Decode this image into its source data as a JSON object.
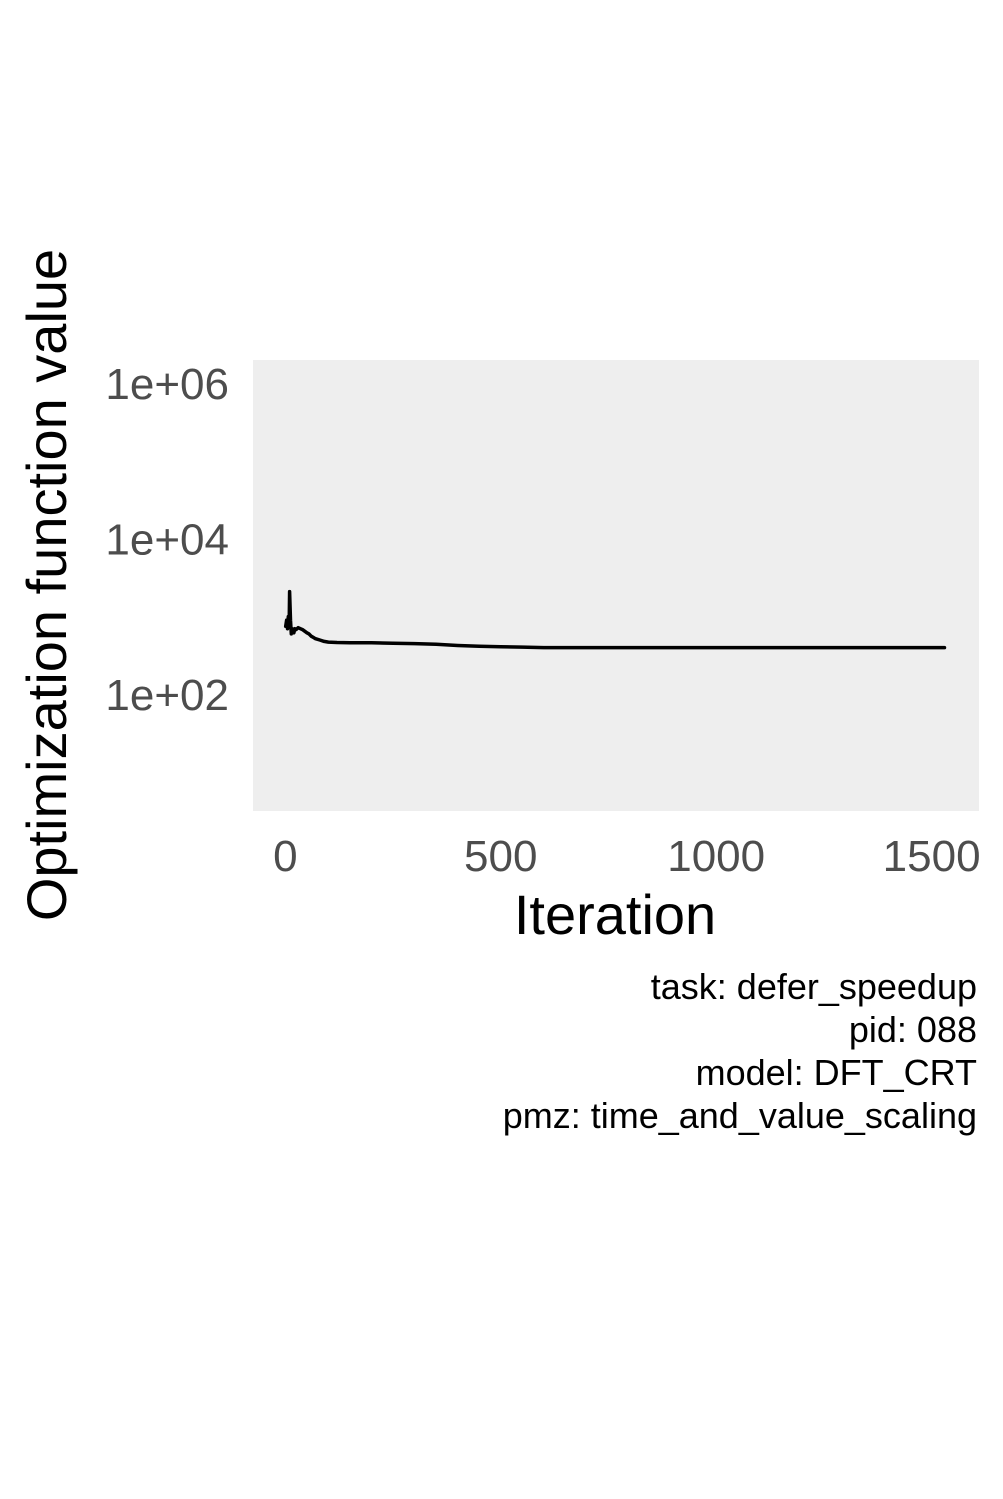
{
  "chart_data": {
    "type": "line",
    "title": "",
    "xlabel": "Iteration",
    "ylabel": "Optimization function value",
    "xlim": [
      -75,
      1610
    ],
    "x_ticks": [
      0,
      500,
      1000,
      1500
    ],
    "x_tick_labels": [
      "0",
      "500",
      "1000",
      "1500"
    ],
    "y_scale": "log10",
    "ylim": [
      3.16,
      2000000
    ],
    "y_ticks": [
      100,
      10000,
      1000000
    ],
    "y_tick_labels": [
      "1e+02",
      "1e+04",
      "1e+06"
    ],
    "grid": false,
    "legend": "none",
    "panel_background": "#eeeeee",
    "line_color": "#000000",
    "series": [
      {
        "x": [
          1,
          3,
          5,
          7,
          9,
          10,
          12,
          14,
          16,
          18,
          20,
          22,
          25,
          30,
          35,
          40,
          45,
          50,
          55,
          60,
          65,
          70,
          80,
          90,
          100,
          120,
          150,
          200,
          250,
          300,
          350,
          400,
          450,
          500,
          550,
          600,
          700,
          800,
          900,
          1000,
          1100,
          1200,
          1300,
          1400,
          1500,
          1530
        ],
        "y": [
          750,
          900,
          700,
          1000,
          850,
          2100,
          900,
          600,
          700,
          650,
          620,
          700,
          680,
          720,
          700,
          680,
          650,
          620,
          600,
          560,
          540,
          520,
          500,
          480,
          470,
          465,
          460,
          460,
          455,
          450,
          440,
          425,
          415,
          410,
          405,
          400,
          400,
          400,
          400,
          400,
          400,
          400,
          400,
          400,
          400,
          400
        ]
      }
    ]
  },
  "caption": {
    "lines": [
      "task: defer_speedup",
      "pid: 088",
      "model: DFT_CRT",
      "pmz: time_and_value_scaling"
    ]
  }
}
